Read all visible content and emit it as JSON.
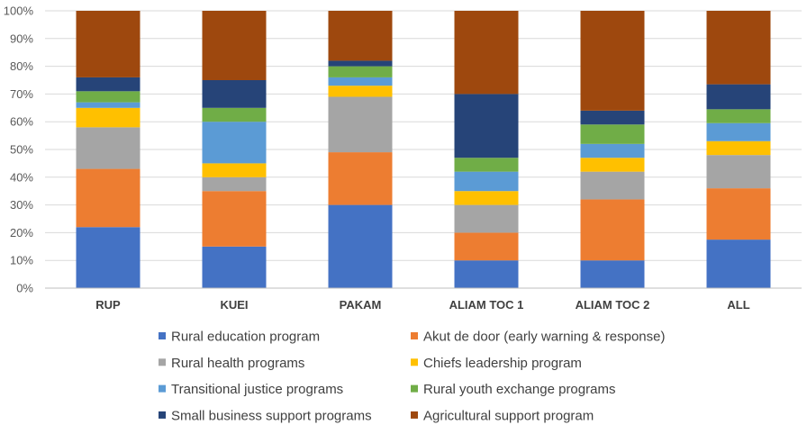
{
  "chart_data": {
    "type": "bar",
    "stacked": true,
    "normalized": true,
    "title": "",
    "xlabel": "",
    "ylabel": "",
    "ylim": [
      0,
      100
    ],
    "yticks": [
      "0%",
      "10%",
      "20%",
      "30%",
      "40%",
      "50%",
      "60%",
      "70%",
      "80%",
      "90%",
      "100%"
    ],
    "categories": [
      "RUP",
      "KUEI",
      "PAKAM",
      "ALIAM TOC 1",
      "ALIAM TOC 2",
      "ALL"
    ],
    "legend_position": "bottom",
    "series": [
      {
        "name": "Rural education program",
        "color": "#4472C4",
        "values": [
          22,
          15,
          30,
          10,
          10,
          17.5
        ]
      },
      {
        "name": "Akut de door (early warning & response)",
        "color": "#ED7D31",
        "values": [
          21,
          20,
          19,
          10,
          22,
          18.5
        ]
      },
      {
        "name": "Rural health programs",
        "color": "#A5A5A5",
        "values": [
          15,
          5,
          20,
          10,
          10,
          12
        ]
      },
      {
        "name": "Chiefs leadership program",
        "color": "#FFC000",
        "values": [
          7,
          5,
          4,
          5,
          5,
          5
        ]
      },
      {
        "name": "Transitional justice programs",
        "color": "#5B9BD5",
        "values": [
          2,
          15,
          3,
          7,
          5,
          6.5
        ]
      },
      {
        "name": "Rural youth exchange programs",
        "color": "#70AD47",
        "values": [
          4,
          5,
          4,
          5,
          7,
          5
        ]
      },
      {
        "name": "Small business support programs",
        "color": "#264478",
        "values": [
          5,
          10,
          2,
          23,
          5,
          9
        ]
      },
      {
        "name": "Agricultural support program",
        "color": "#9E480E",
        "values": [
          24,
          25,
          18,
          30,
          36,
          26.5
        ]
      }
    ]
  }
}
